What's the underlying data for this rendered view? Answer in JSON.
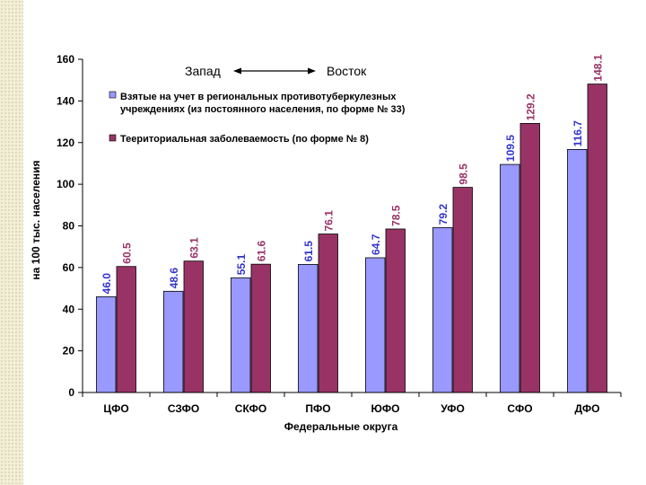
{
  "chart_data": {
    "type": "bar",
    "categories": [
      "ЦФО",
      "СЗФО",
      "СКФО",
      "ПФО",
      "ЮФО",
      "УФО",
      "СФО",
      "ДФО"
    ],
    "series": [
      {
        "name": "Взятые на учет в региональных противотуберкулезных учреждениях (из постоянного населения, по форме № 33)",
        "color": "#9999ff",
        "values": [
          46.0,
          48.6,
          55.1,
          61.5,
          64.7,
          79.2,
          109.5,
          116.7
        ],
        "labels": [
          "46.0",
          "48.6",
          "55.1",
          "61.5",
          "64.7",
          "79.2",
          "109.5",
          "116.7"
        ]
      },
      {
        "name": "Теериториальная заболеваемость (по форме № 8)",
        "color": "#993366",
        "values": [
          60.5,
          63.1,
          61.6,
          76.1,
          78.5,
          98.5,
          129.2,
          148.1
        ],
        "labels": [
          "60.5",
          "63.1",
          "61.6",
          "76.1",
          "78.5",
          "98.5",
          "129.2",
          "148.1"
        ]
      }
    ],
    "xlabel": "Федеральные округа",
    "ylabel": "на 100 тыс. населения",
    "ylim": [
      0,
      160
    ],
    "yticks": [
      0,
      20,
      40,
      60,
      80,
      100,
      120,
      140,
      160
    ],
    "grid": false,
    "legend_position": "top-left",
    "annotation": {
      "left": "Запад",
      "right": "Восток"
    }
  }
}
